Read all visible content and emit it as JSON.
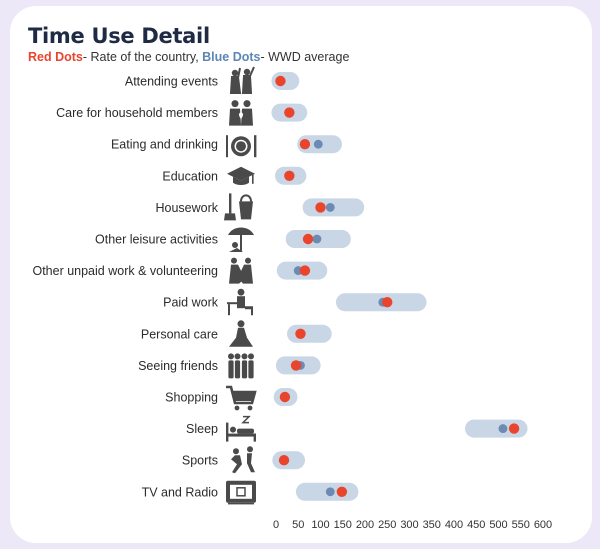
{
  "header": {
    "title": "Time Use Detail",
    "legend_red_label": "Red Dots",
    "legend_red_text": "- Rate of the country,",
    "legend_blue_label": "Blue Dots",
    "legend_blue_text": "- WWD average"
  },
  "colors": {
    "red_dot": "#e8452c",
    "blue_dot": "#6b8bb3",
    "range_bar": "#c9d6e6",
    "icon": "#4a4a4a"
  },
  "chart_data": {
    "type": "dot-range",
    "title": "Time Use Detail",
    "xlim": [
      0,
      600
    ],
    "x_ticks": [
      0,
      50,
      100,
      150,
      200,
      250,
      300,
      350,
      400,
      450,
      500,
      550,
      600
    ],
    "grid": false,
    "categories": [
      "Attending events",
      "Care for household members",
      "Eating and drinking",
      "Education",
      "Housework",
      "Other leisure activities",
      "Other unpaid work & volunteering",
      "Paid work",
      "Personal care",
      "Seeing friends",
      "Shopping",
      "Sleep",
      "Sports",
      "TV and Radio"
    ],
    "icons": [
      "attending-events-icon",
      "care-household-icon",
      "eating-drinking-icon",
      "education-icon",
      "housework-icon",
      "leisure-icon",
      "volunteering-icon",
      "paid-work-icon",
      "personal-care-icon",
      "seeing-friends-icon",
      "shopping-icon",
      "sleep-icon",
      "sports-icon",
      "tv-radio-icon"
    ],
    "ranges": [
      [
        10,
        32
      ],
      [
        10,
        50
      ],
      [
        68,
        128
      ],
      [
        18,
        48
      ],
      [
        80,
        178
      ],
      [
        42,
        148
      ],
      [
        22,
        95
      ],
      [
        155,
        318
      ],
      [
        45,
        105
      ],
      [
        20,
        80
      ],
      [
        15,
        28
      ],
      [
        445,
        545
      ],
      [
        12,
        45
      ],
      [
        65,
        165
      ]
    ],
    "series": [
      {
        "name": "Red Dots",
        "color": "#e8452c",
        "values": [
          10,
          30,
          65,
          30,
          100,
          72,
          65,
          250,
          55,
          45,
          20,
          535,
          18,
          148
        ]
      },
      {
        "name": "Blue Dots",
        "color": "#6b8bb3",
        "values": [
          10,
          30,
          95,
          30,
          122,
          92,
          50,
          240,
          55,
          55,
          20,
          510,
          18,
          122
        ]
      }
    ]
  }
}
